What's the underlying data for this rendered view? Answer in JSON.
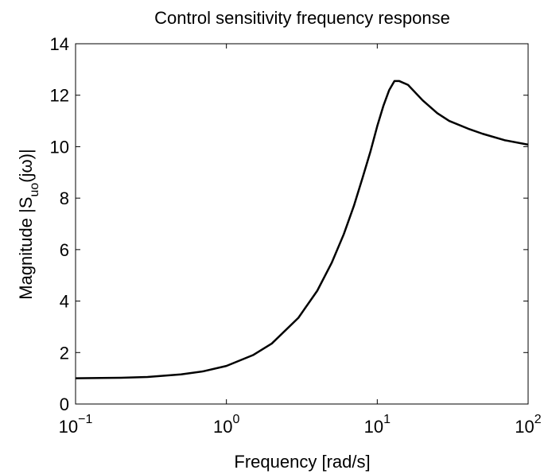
{
  "chart_data": {
    "type": "line",
    "title": "Control sensitivity frequency response",
    "xlabel": "Frequency [rad/s]",
    "ylabel": {
      "text": "Magnitude  |S",
      "sub": "uo",
      "rest": "(jω)|"
    },
    "xscale": "log",
    "xlim": [
      0.1,
      100
    ],
    "xticks": [
      {
        "value": 0.1,
        "label": "10",
        "exponent": "−1"
      },
      {
        "value": 1,
        "label": "10",
        "exponent": "0"
      },
      {
        "value": 10,
        "label": "10",
        "exponent": "1"
      },
      {
        "value": 100,
        "label": "10",
        "exponent": "2"
      }
    ],
    "ylim": [
      0,
      14
    ],
    "yticks": [
      0,
      2,
      4,
      6,
      8,
      10,
      12,
      14
    ],
    "grid": false,
    "x": [
      0.1,
      0.2,
      0.3,
      0.5,
      0.7,
      1,
      1.5,
      2,
      3,
      4,
      5,
      6,
      7,
      8,
      9,
      10,
      11,
      12,
      13,
      14,
      16,
      20,
      25,
      30,
      40,
      50,
      70,
      100
    ],
    "series": [
      {
        "color": "#000000",
        "values": [
          1.0,
          1.02,
          1.05,
          1.15,
          1.27,
          1.48,
          1.9,
          2.35,
          3.35,
          4.4,
          5.5,
          6.6,
          7.7,
          8.8,
          9.8,
          10.8,
          11.6,
          12.2,
          12.55,
          12.55,
          12.4,
          11.8,
          11.3,
          11.0,
          10.7,
          10.5,
          10.25,
          10.08
        ]
      }
    ]
  }
}
